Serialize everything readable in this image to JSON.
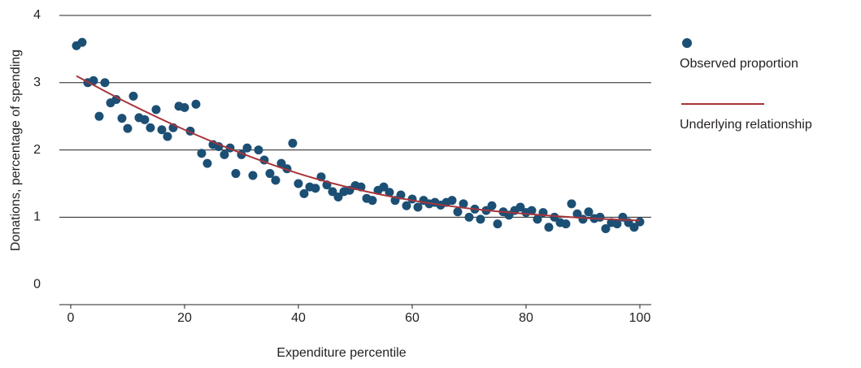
{
  "chart_data": {
    "type": "scatter",
    "x_label": "Expenditure percentile",
    "y_label": "Donations, percentage of spending",
    "xlim": [
      -2,
      102
    ],
    "xticks": [
      0,
      20,
      40,
      60,
      80,
      100
    ],
    "ylim": [
      -0.3,
      4
    ],
    "yticks": [
      0,
      1,
      2,
      3,
      4
    ],
    "grid": true,
    "series": [
      {
        "name": "Observed proportion",
        "type": "scatter",
        "color": "#1c4f74",
        "x": [
          1,
          2,
          3,
          4,
          5,
          6,
          7,
          8,
          9,
          10,
          11,
          12,
          13,
          14,
          15,
          16,
          17,
          18,
          19,
          20,
          21,
          22,
          23,
          24,
          25,
          26,
          27,
          28,
          29,
          30,
          31,
          32,
          33,
          34,
          35,
          36,
          37,
          38,
          39,
          40,
          41,
          42,
          43,
          44,
          45,
          46,
          47,
          48,
          49,
          50,
          51,
          52,
          53,
          54,
          55,
          56,
          57,
          58,
          59,
          60,
          61,
          62,
          63,
          64,
          65,
          66,
          67,
          68,
          69,
          70,
          71,
          72,
          73,
          74,
          75,
          76,
          77,
          78,
          79,
          80,
          81,
          82,
          83,
          84,
          85,
          86,
          87,
          88,
          89,
          90,
          91,
          92,
          93,
          94,
          95,
          96,
          97,
          98,
          99,
          100
        ],
        "values": [
          3.55,
          3.6,
          3.0,
          3.03,
          2.5,
          3.0,
          2.7,
          2.75,
          2.47,
          2.32,
          2.8,
          2.48,
          2.45,
          2.33,
          2.6,
          2.3,
          2.2,
          2.33,
          2.65,
          2.63,
          2.28,
          2.68,
          1.95,
          1.8,
          2.08,
          2.05,
          1.93,
          2.03,
          1.65,
          1.93,
          2.03,
          1.62,
          2.0,
          1.85,
          1.65,
          1.55,
          1.8,
          1.72,
          2.1,
          1.5,
          1.35,
          1.45,
          1.43,
          1.6,
          1.48,
          1.38,
          1.3,
          1.38,
          1.4,
          1.47,
          1.45,
          1.28,
          1.25,
          1.4,
          1.45,
          1.37,
          1.25,
          1.33,
          1.17,
          1.27,
          1.15,
          1.25,
          1.2,
          1.22,
          1.18,
          1.22,
          1.25,
          1.08,
          1.2,
          1.0,
          1.12,
          0.97,
          1.1,
          1.17,
          0.9,
          1.08,
          1.03,
          1.1,
          1.15,
          1.07,
          1.1,
          0.97,
          1.07,
          0.85,
          1.0,
          0.92,
          0.9,
          1.2,
          1.05,
          0.97,
          1.08,
          0.98,
          1.0,
          0.83,
          0.92,
          0.9,
          1.0,
          0.92,
          0.85,
          0.93
        ]
      },
      {
        "name": "Underlying relationship",
        "type": "line",
        "color": "#a8343b",
        "x": [
          1,
          10,
          20,
          30,
          40,
          50,
          60,
          70,
          80,
          90,
          100
        ],
        "values": [
          3.1,
          2.7,
          2.3,
          1.95,
          1.65,
          1.42,
          1.25,
          1.13,
          1.05,
          0.99,
          0.95
        ]
      }
    ]
  }
}
